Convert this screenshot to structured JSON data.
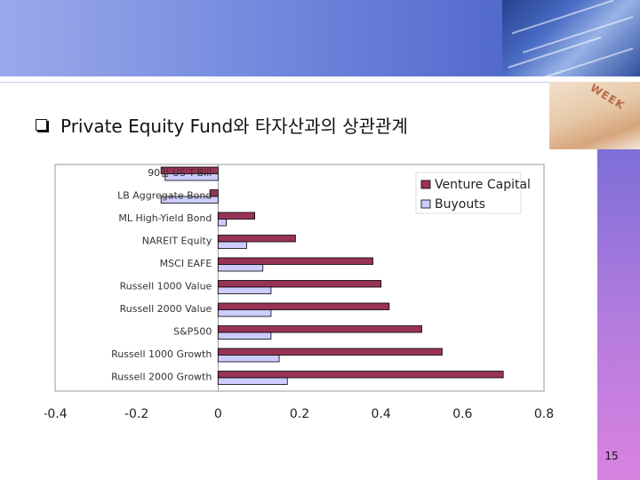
{
  "slide": {
    "title": "Private Equity Fund와 타자산과의 상관관계",
    "page_number": "15",
    "decorations": {
      "title_bullet_icon": "checkbox-bullet-icon",
      "top_photo": "finance-paper-photo",
      "corner_photo": "newspaper-photo"
    }
  },
  "colors": {
    "venture_capital": "#993355",
    "buyouts": "#ccccff",
    "bar_stroke": "#000000",
    "axis": "#999999",
    "top_band": "#6f86dd",
    "side_band": "#b27bde"
  },
  "chart_data": {
    "type": "bar",
    "orientation": "horizontal",
    "categories": [
      "90일 US T-Bill",
      "LB Aggregate Bond",
      "ML High-Yield Bond",
      "NAREIT Equity",
      "MSCI EAFE",
      "Russell 1000 Value",
      "Russell 2000 Value",
      "S&P500",
      "Russell 1000 Growth",
      "Russell 2000 Growth"
    ],
    "series": [
      {
        "name": "Venture Capital",
        "values": [
          -0.14,
          -0.02,
          0.09,
          0.19,
          0.38,
          0.4,
          0.42,
          0.5,
          0.55,
          0.7
        ]
      },
      {
        "name": "Buyouts",
        "values": [
          -0.13,
          -0.14,
          0.02,
          0.07,
          0.11,
          0.13,
          0.13,
          0.13,
          0.15,
          0.17
        ]
      }
    ],
    "xlim": [
      -0.4,
      0.8
    ],
    "xticks": [
      "-0.4",
      "-0.2",
      "0",
      "0.2",
      "0.4",
      "0.6",
      "0.8"
    ],
    "legend_position": "top-right",
    "grid": false
  }
}
